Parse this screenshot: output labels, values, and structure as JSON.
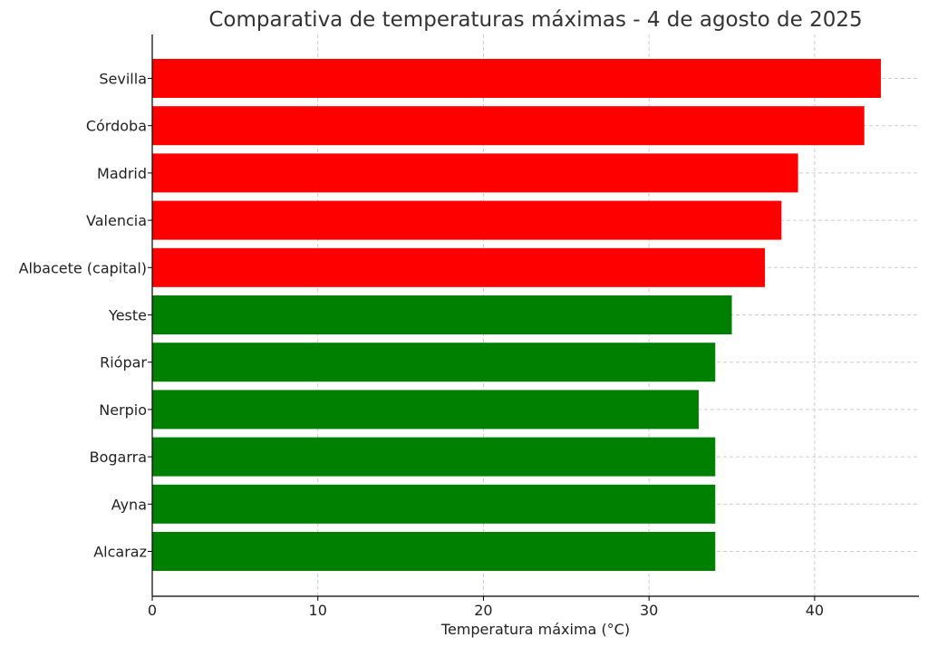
{
  "chart_data": {
    "type": "bar",
    "orientation": "horizontal",
    "title": "Comparativa de temperaturas máximas - 4 de agosto de 2025",
    "xlabel": "Temperatura máxima (°C)",
    "ylabel": "",
    "xlim": [
      0,
      46.3
    ],
    "xticks": [
      0,
      10,
      20,
      30,
      40
    ],
    "grid": true,
    "categories": [
      "Sevilla",
      "Córdoba",
      "Madrid",
      "Valencia",
      "Albacete (capital)",
      "Yeste",
      "Riópar",
      "Nerpio",
      "Bogarra",
      "Ayna",
      "Alcaraz"
    ],
    "values": [
      44,
      43,
      39,
      38,
      37,
      35,
      34,
      33,
      34,
      34,
      34
    ],
    "colors": [
      "#ff0000",
      "#ff0000",
      "#ff0000",
      "#ff0000",
      "#ff0000",
      "#008000",
      "#008000",
      "#008000",
      "#008000",
      "#008000",
      "#008000"
    ]
  }
}
